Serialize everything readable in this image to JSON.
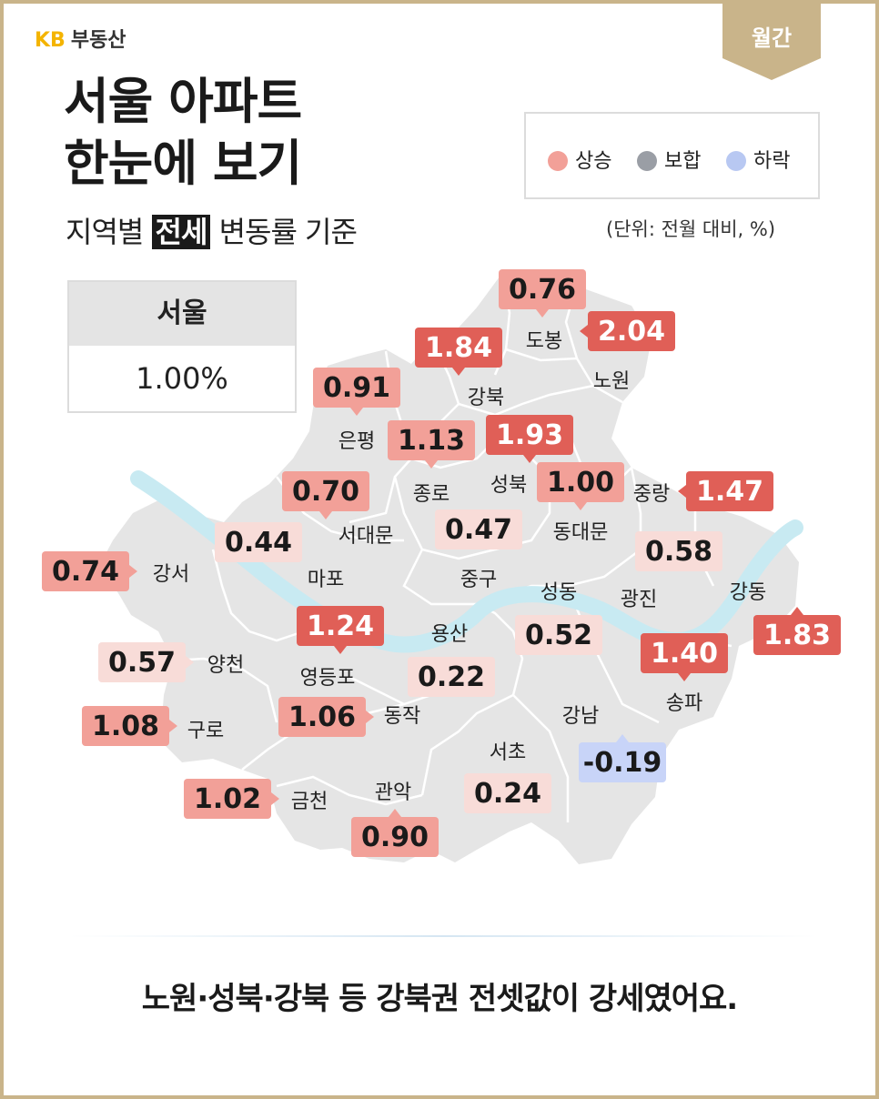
{
  "brand": {
    "logo": "KB",
    "name": "부동산"
  },
  "period_badge": "월간",
  "title_lines": [
    "서울 아파트",
    "한눈에 보기"
  ],
  "subtitle": {
    "before": "지역별",
    "highlight": "전세",
    "after": "변동률 기준"
  },
  "legend": [
    {
      "label": "상승",
      "color": "#f2a098"
    },
    {
      "label": "보합",
      "color": "#9a9ea5"
    },
    {
      "label": "하락",
      "color": "#b8c8f2"
    }
  ],
  "unit_note": "(단위: 전월 대비, %)",
  "seoul_summary": {
    "label": "서울",
    "value": "1.00%"
  },
  "colors": {
    "strong": "#e05f57",
    "mid": "#f2a098",
    "light": "#f8dcd8",
    "fall": "#c8d4f8",
    "map": "#e5e5e5",
    "river": "#c8eaf2",
    "frame": "#c9b48a"
  },
  "districts": [
    {
      "name": "도봉",
      "value": "0.76"
    },
    {
      "name": "노원",
      "value": "2.04"
    },
    {
      "name": "강북",
      "value": "1.84"
    },
    {
      "name": "은평",
      "value": "0.91"
    },
    {
      "name": "종로",
      "value": "1.13"
    },
    {
      "name": "성북",
      "value": "1.93"
    },
    {
      "name": "동대문",
      "value": "1.00"
    },
    {
      "name": "중랑",
      "value": "1.47"
    },
    {
      "name": "서대문",
      "value": "0.70"
    },
    {
      "name": "마포",
      "value": "0.44"
    },
    {
      "name": "중구",
      "value": "0.47"
    },
    {
      "name": "강서",
      "value": "0.74"
    },
    {
      "name": "광진",
      "value": "0.58"
    },
    {
      "name": "성동",
      "value": "0.52"
    },
    {
      "name": "강동",
      "value": "1.83"
    },
    {
      "name": "용산",
      "value": "0.22"
    },
    {
      "name": "영등포",
      "value": "1.24"
    },
    {
      "name": "양천",
      "value": "0.57"
    },
    {
      "name": "송파",
      "value": "1.40"
    },
    {
      "name": "구로",
      "value": "1.08"
    },
    {
      "name": "동작",
      "value": "1.06"
    },
    {
      "name": "강남",
      "value": "-0.19"
    },
    {
      "name": "서초",
      "value": "0.24"
    },
    {
      "name": "금천",
      "value": "1.02"
    },
    {
      "name": "관악",
      "value": "0.90"
    }
  ],
  "footer": "노원·성북·강북 등 강북권 전셋값이 강세였어요."
}
